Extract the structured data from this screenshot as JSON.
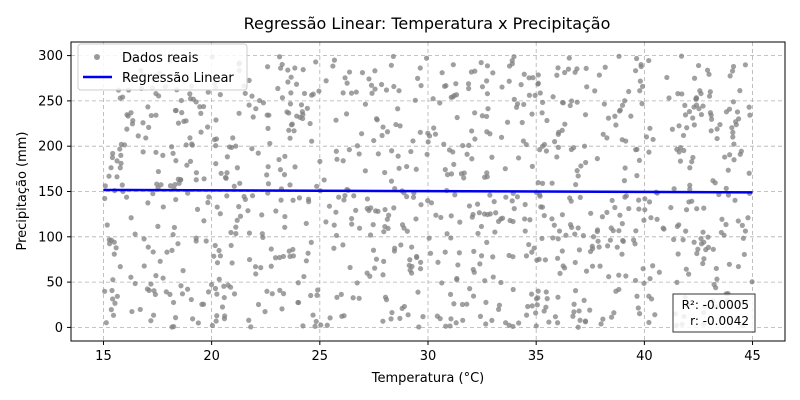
{
  "chart_data": {
    "type": "scatter",
    "title": "Regressão Linear: Temperatura x Precipitação",
    "xlabel": "Temperatura (°C)",
    "ylabel": "Precipitação (mm)",
    "xlim": [
      13.5,
      46.5
    ],
    "ylim": [
      -15,
      315
    ],
    "xticks": [
      15,
      20,
      25,
      30,
      35,
      40,
      45
    ],
    "yticks": [
      0,
      50,
      100,
      150,
      200,
      250,
      300
    ],
    "grid": true,
    "legend_position": "top-left",
    "colors": {
      "scatter": "#808080",
      "line": "#0000ee"
    },
    "series": [
      {
        "name": "Dados reais",
        "type": "scatter",
        "count": 1000,
        "x_range": [
          15,
          45
        ],
        "y_range": [
          0,
          300
        ]
      },
      {
        "name": "Regressão Linear",
        "type": "line",
        "x": [
          15,
          45
        ],
        "y": [
          151.7,
          149.1
        ]
      }
    ],
    "annotation": {
      "r2": "R²: -0.0005",
      "r": "r: -0.0042"
    }
  }
}
